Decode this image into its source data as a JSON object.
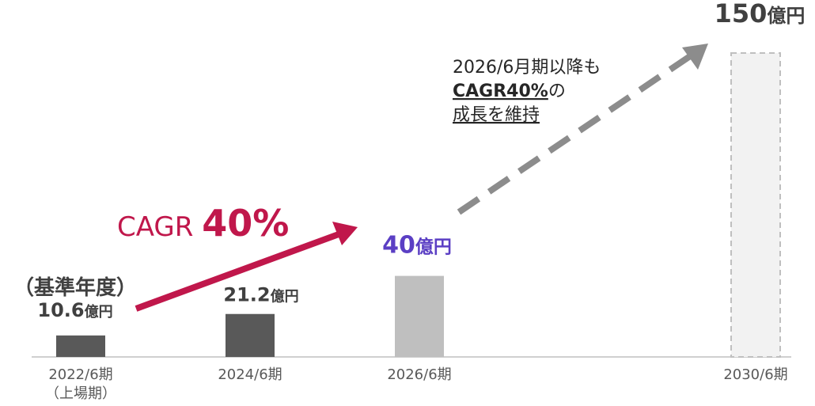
{
  "chart_data": {
    "type": "bar",
    "categories": [
      "2022/6期\n（上場期）",
      "2024/6期",
      "2026/6期",
      "2030/6期"
    ],
    "values": [
      10.6,
      21.2,
      40,
      150
    ],
    "value_labels": [
      "10.6億円",
      "21.2億円",
      "40億円",
      "150億円"
    ],
    "colors": [
      "#595959",
      "#595959",
      "#bfbfbf",
      "#f2f2f2"
    ],
    "label_colors": [
      "#404040",
      "#404040",
      "#5b3fc4",
      "#404040"
    ],
    "bar_styles": [
      "solid",
      "solid",
      "solid",
      "dashed"
    ],
    "annotations": {
      "base_year": "（基準年度）",
      "cagr": "CAGR 40%",
      "note": [
        "2026/6月期以降も",
        "CAGR40%の",
        "成長を維持"
      ]
    }
  }
}
